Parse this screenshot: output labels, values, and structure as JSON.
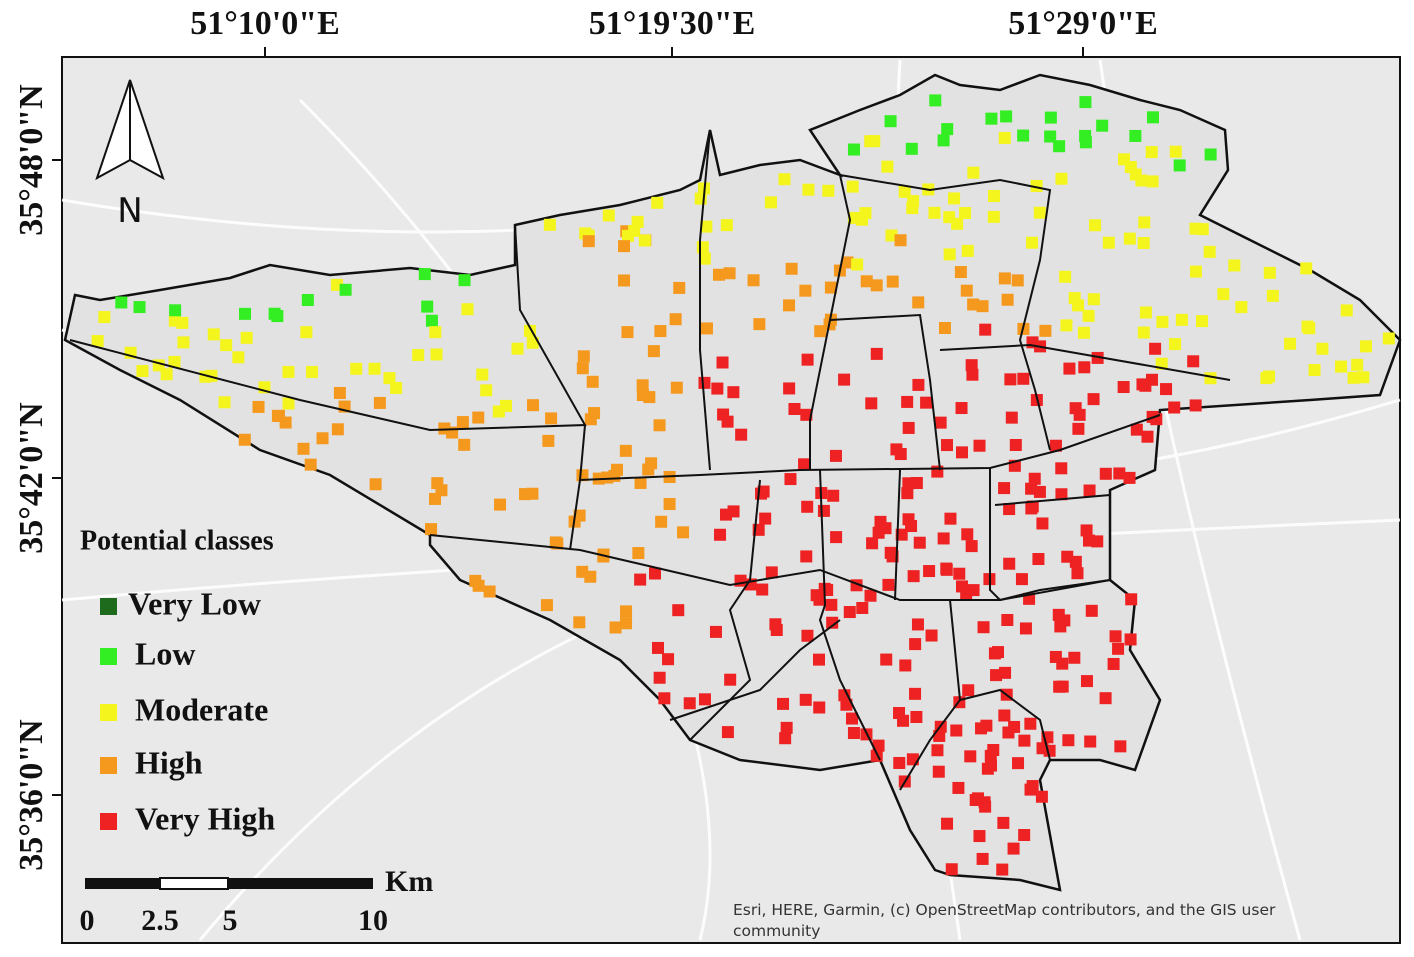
{
  "map": {
    "x_labels": [
      "51°10'0\"E",
      "51°19'30\"E",
      "51°29'0\"E"
    ],
    "y_labels": [
      "35°48'0\"N",
      "35°42'0\"N",
      "35°36'0\"N"
    ]
  },
  "north_arrow": {
    "label": "N"
  },
  "legend": {
    "title": "Potential classes",
    "items": [
      {
        "label": "Very Low",
        "color": "#1e6b1e"
      },
      {
        "label": "Low",
        "color": "#33ee22"
      },
      {
        "label": "Moderate",
        "color": "#f5f51e"
      },
      {
        "label": "High",
        "color": "#f5991e"
      },
      {
        "label": "Very High",
        "color": "#ee2222"
      }
    ]
  },
  "scale_bar": {
    "unit": "Km",
    "labels": [
      0,
      2.5,
      5,
      10
    ]
  },
  "attribution": "Esri, HERE, Garmin, (c) OpenStreetMap contributors, and the GIS user community"
}
